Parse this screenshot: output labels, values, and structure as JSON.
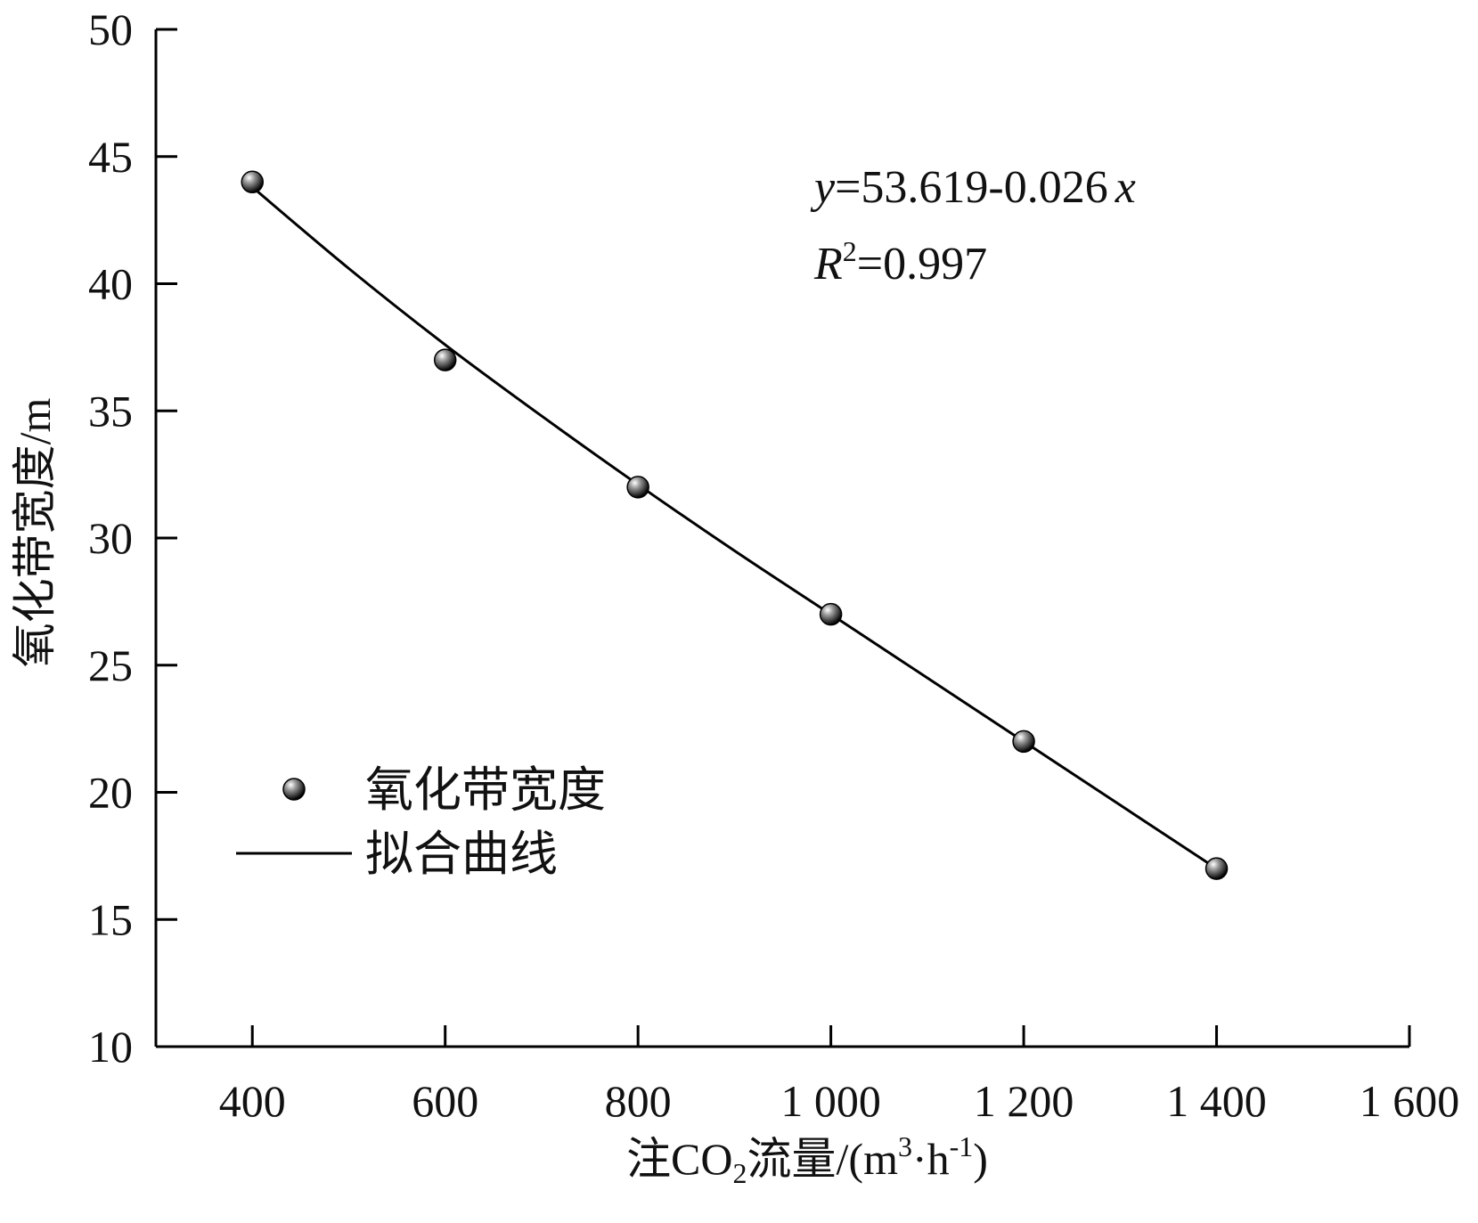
{
  "chart_data": {
    "type": "scatter",
    "title": "",
    "xlabel_parts": [
      "注CO",
      "2",
      "流量/(m",
      "3",
      "·h",
      "-1",
      ")"
    ],
    "ylabel": "氧化带宽度/m",
    "xlim": [
      300,
      1600
    ],
    "ylim": [
      10,
      50
    ],
    "x_ticks": [
      400,
      600,
      800,
      1000,
      1200,
      1400,
      1600
    ],
    "x_tick_labels": [
      "400",
      "600",
      "800",
      "1 000",
      "1 200",
      "1 400",
      "1 600"
    ],
    "y_ticks": [
      10,
      15,
      20,
      25,
      30,
      35,
      40,
      45,
      50
    ],
    "y_tick_labels": [
      "10",
      "15",
      "20",
      "25",
      "30",
      "35",
      "40",
      "45",
      "50"
    ],
    "grid": false,
    "legend_position": "lower-left",
    "series": [
      {
        "name": "氧化带宽度",
        "kind": "points",
        "x": [
          400,
          600,
          800,
          1000,
          1200,
          1400
        ],
        "y": [
          44,
          37,
          32,
          27,
          22,
          17
        ]
      },
      {
        "name": "拟合曲线",
        "kind": "line",
        "x": [
          400,
          500,
          600,
          700,
          800,
          900,
          1000,
          1100,
          1200,
          1300,
          1400
        ],
        "y": [
          43.8,
          40.6,
          37.6,
          34.8,
          32.1,
          29.5,
          27.0,
          24.5,
          22.0,
          19.5,
          17.0
        ]
      }
    ],
    "annotations": {
      "equation_parts": [
        "y",
        "=53.619-0.026",
        "x"
      ],
      "r2_parts": [
        "R",
        "2",
        "=0.997"
      ]
    }
  }
}
